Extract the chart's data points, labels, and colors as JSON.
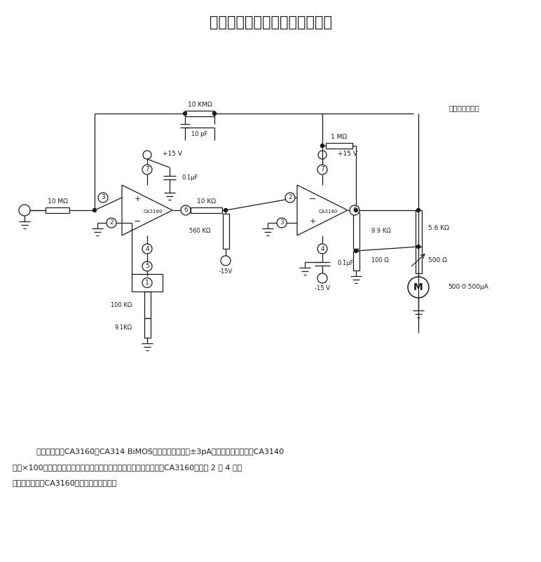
{
  "title": "输入端受保护的皮安电流表电路",
  "desc1": "    这一电路使用CA3160和CA314 BiMOS运算放大器来提供±3pA的满刻度电表偏移。CA3140",
  "desc2": "用作×100增益级，以便为电表和反馈网路提供正的和负的输出摆幅。CA3160的引脚 2 和 4 处于",
  "desc3": "地电位，因此，CA3160的输入端受到保护。",
  "label_pian": "皮安电流表电路",
  "bg_color": "#ffffff",
  "line_color": "#1a1a1a"
}
